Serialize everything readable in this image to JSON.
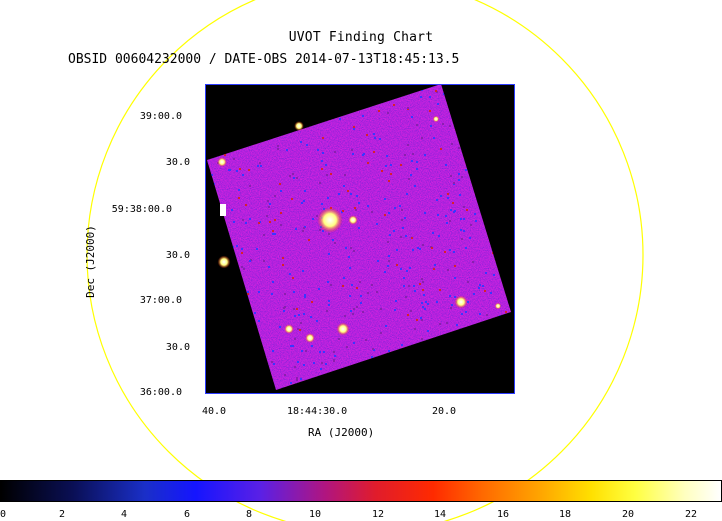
{
  "title": "UVOT Finding Chart",
  "subtitle": "OBSID 00604232000 / DATE-OBS 2014-07-13T18:45:13.5",
  "axes": {
    "x_title": "RA (J2000)",
    "y_title": "Dec (J2000)",
    "x_ticks": [
      "40.0",
      "18:44:30.0",
      "20.0"
    ],
    "y_ticks": [
      "39:00.0",
      "30.0",
      "59:38:00.0",
      "30.0",
      "37:00.0",
      "30.0",
      "36:00.0"
    ]
  },
  "colorbar": {
    "ticks": [
      "0",
      "2",
      "4",
      "6",
      "8",
      "10",
      "12",
      "14",
      "16",
      "18",
      "20",
      "22"
    ],
    "min": 0,
    "max": 22
  },
  "colors": {
    "circle": "#ffff00",
    "frame": "#2d3cff",
    "background": "#ffffff",
    "field_background": "#000000",
    "image_base": "#2a24c8"
  }
}
